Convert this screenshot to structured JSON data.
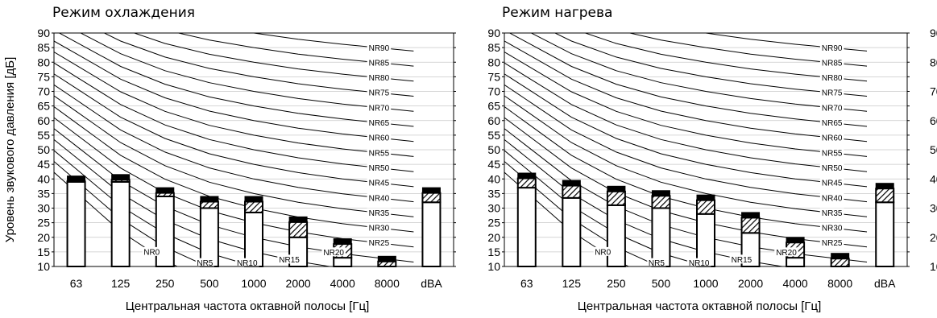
{
  "chart_data": [
    {
      "type": "bar",
      "title": "Режим охлаждения",
      "xlabel": "Центральная частота октавной полосы [Гц]",
      "ylabel": "Уровень звукового давления [дБ]",
      "ylim": [
        10,
        90
      ],
      "yticks": [
        10,
        15,
        20,
        25,
        30,
        35,
        40,
        45,
        50,
        55,
        60,
        65,
        70,
        75,
        80,
        85,
        90
      ],
      "categories": [
        "63",
        "125",
        "250",
        "500",
        "1000",
        "2000",
        "4000",
        "8000",
        "dBA"
      ],
      "series": [
        {
          "values": [
            41,
            41.5,
            37,
            34,
            34,
            27,
            19.5,
            13.5,
            37
          ]
        },
        {
          "values": [
            39,
            39,
            34,
            30,
            28.5,
            20,
            13,
            10,
            32
          ]
        }
      ],
      "nr_curves": [
        "NR0",
        "NR5",
        "NR10",
        "NR15",
        "NR20",
        "NR25",
        "NR30",
        "NR35",
        "NR40",
        "NR45",
        "NR50",
        "NR55",
        "NR60",
        "NR65",
        "NR70",
        "NR75",
        "NR80",
        "NR85",
        "NR90"
      ],
      "grid": true
    },
    {
      "type": "bar",
      "title": "Режим нагрева",
      "xlabel": "Центральная частота октавной полосы [Гц]",
      "ylabel": "Уровень звукового давления [дБ]",
      "ylim": [
        10,
        90
      ],
      "yticks": [
        10,
        15,
        20,
        25,
        30,
        35,
        40,
        45,
        50,
        55,
        60,
        65,
        70,
        75,
        80,
        85,
        90
      ],
      "categories": [
        "63",
        "125",
        "250",
        "500",
        "1000",
        "2000",
        "4000",
        "8000",
        "dBA"
      ],
      "series": [
        {
          "values": [
            42,
            39.5,
            37.5,
            36,
            34.5,
            28.5,
            20,
            14.5,
            38.5
          ]
        },
        {
          "values": [
            37,
            33.5,
            31,
            30,
            28,
            21.5,
            13,
            10,
            32
          ]
        }
      ],
      "nr_curves": [
        "NR0",
        "NR5",
        "NR10",
        "NR15",
        "NR20",
        "NR25",
        "NR30",
        "NR35",
        "NR40",
        "NR45",
        "NR50",
        "NR55",
        "NR60",
        "NR65",
        "NR70",
        "NR75",
        "NR80",
        "NR85",
        "NR90"
      ],
      "grid": true
    }
  ]
}
